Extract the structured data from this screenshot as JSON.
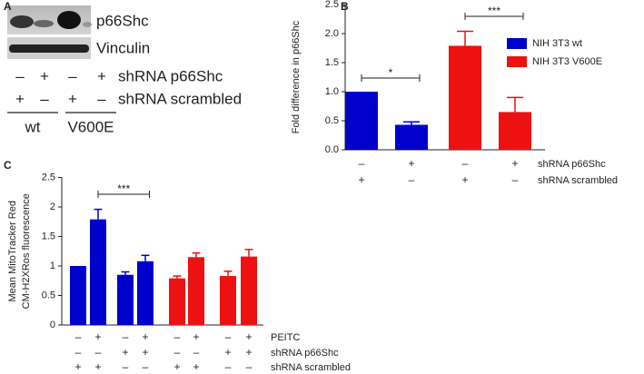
{
  "panel_a": {
    "panel": "A",
    "bands": [
      "p66Shc",
      "Vinculin"
    ],
    "conditions": [
      {
        "label": "shRNA p66Shc",
        "signs": [
          "–",
          "+",
          "–",
          "+"
        ]
      },
      {
        "label": "shRNA scrambled",
        "signs": [
          "+",
          "–",
          "+",
          "–"
        ]
      }
    ],
    "groups": [
      "wt",
      "V600E"
    ]
  },
  "chart_data": [
    {
      "type": "bar",
      "panel": "B",
      "y_label": [
        "Fold difference in p66Shc"
      ],
      "categories": [
        null,
        null,
        null,
        null
      ],
      "series": [
        {
          "name": "NIH 3T3 wt",
          "color": "#0000cc",
          "values": [
            1.0,
            0.43,
            null,
            null
          ],
          "errors": [
            0,
            0.05,
            null,
            null
          ]
        },
        {
          "name": "NIH 3T3 V600E",
          "color": "#ee1111",
          "values": [
            null,
            null,
            1.79,
            0.65
          ],
          "errors": [
            null,
            null,
            0.25,
            0.25
          ]
        }
      ],
      "ylim": [
        0,
        2.5
      ],
      "yticks": [
        {
          "value": 0,
          "label": "0.0"
        },
        0.5,
        {
          "value": 1,
          "label": "1.0"
        },
        1.5,
        {
          "value": 2,
          "label": "2.0"
        },
        2.5
      ],
      "legend": "upper right",
      "annotations": [
        "*",
        "***"
      ],
      "conditions": [
        {
          "label": "shRNA p66Shc",
          "signs": [
            "–",
            "+",
            "–",
            "+"
          ]
        },
        {
          "label": "shRNA scrambled",
          "signs": [
            "+",
            "–",
            "+",
            "–"
          ]
        }
      ]
    },
    {
      "type": "bar",
      "panel": "C",
      "y_label": [
        "Mean MitoTracker Red",
        "CM-H2XRos fluorescence"
      ],
      "categories": [
        null,
        null,
        null,
        null,
        null,
        null,
        null,
        null
      ],
      "series": [
        {
          "color": "#0000cc",
          "values": [
            1.0,
            1.79,
            0.85,
            1.08,
            null,
            null,
            null,
            null
          ],
          "errors": [
            0,
            0.17,
            0.05,
            0.1,
            null,
            null,
            null,
            null
          ]
        },
        {
          "color": "#ee1111",
          "values": [
            null,
            null,
            null,
            null,
            0.79,
            1.15,
            0.83,
            1.16
          ],
          "errors": [
            null,
            null,
            null,
            null,
            0.04,
            0.07,
            0.08,
            0.12
          ]
        }
      ],
      "ylim": [
        0,
        2.5
      ],
      "yticks": [
        0,
        0.5,
        1,
        1.5,
        2,
        2.5
      ],
      "annotations": [
        "***"
      ],
      "conditions": [
        {
          "label": "PEITC",
          "signs": [
            "–",
            "+",
            "–",
            "+",
            "–",
            "+",
            "–",
            "+"
          ]
        },
        {
          "label": "shRNA p66Shc",
          "signs": [
            "–",
            "–",
            "+",
            "+",
            "–",
            "–",
            "+",
            "+"
          ]
        },
        {
          "label": "shRNA scrambled",
          "signs": [
            "+",
            "+",
            "–",
            "–",
            "+",
            "+",
            "–",
            "–"
          ]
        }
      ]
    }
  ]
}
